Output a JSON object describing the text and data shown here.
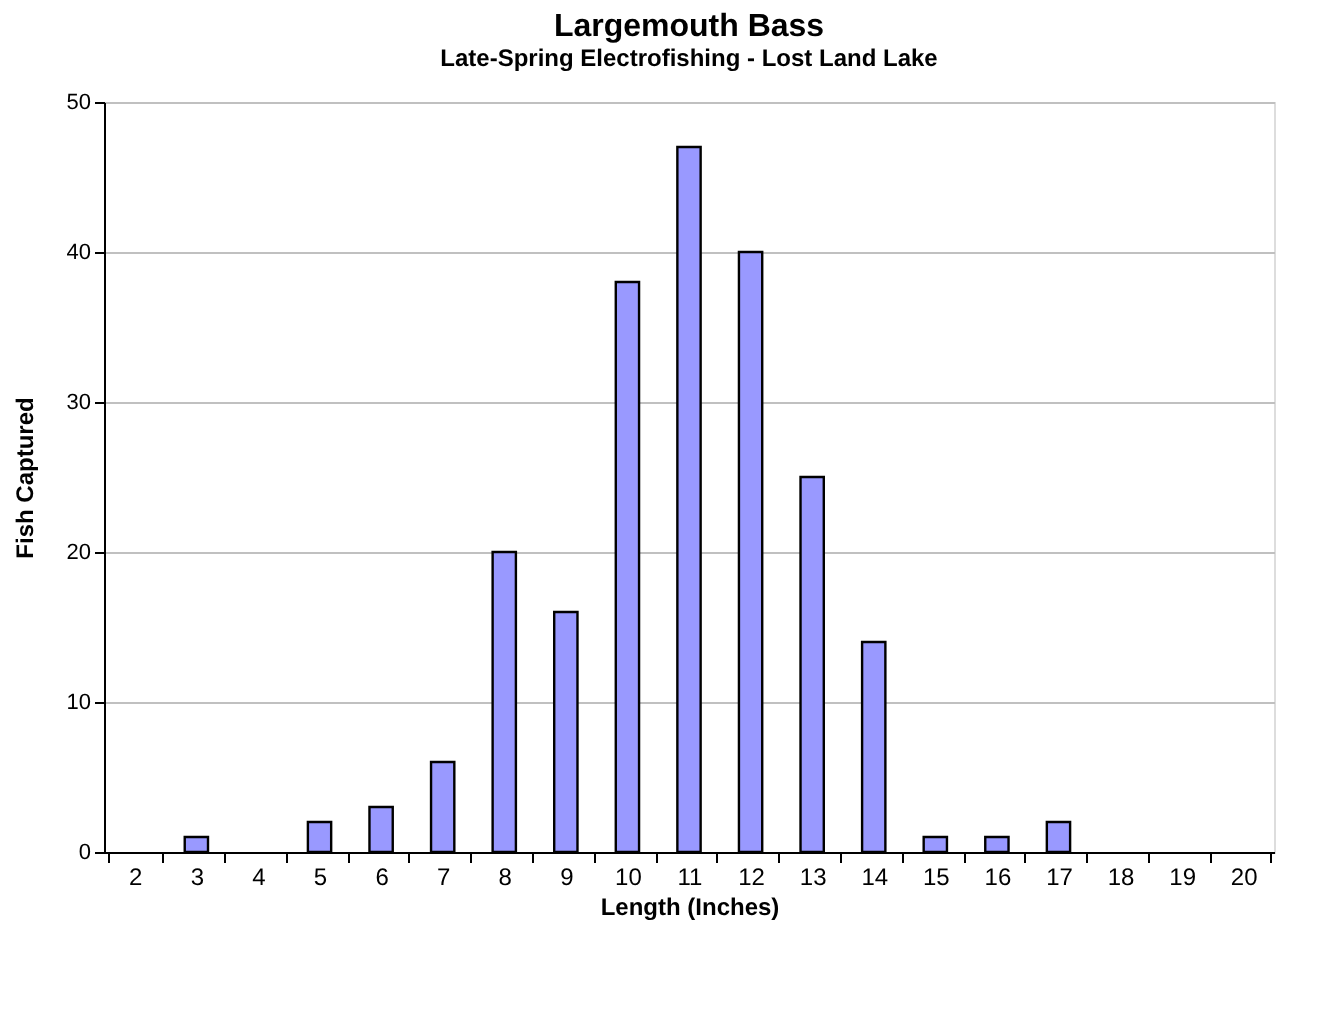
{
  "chart_data": {
    "type": "bar",
    "title": "Largemouth Bass",
    "subtitle": "Late-Spring Electrofishing -  Lost Land Lake",
    "xlabel": "Length (Inches)",
    "ylabel": "Fish Captured",
    "categories": [
      "2",
      "3",
      "4",
      "5",
      "6",
      "7",
      "8",
      "9",
      "10",
      "11",
      "12",
      "13",
      "14",
      "15",
      "16",
      "17",
      "18",
      "19",
      "20"
    ],
    "values": [
      0,
      1,
      0,
      2,
      3,
      6,
      20,
      16,
      38,
      47,
      40,
      25,
      14,
      1,
      1,
      2,
      0,
      0,
      0
    ],
    "color": "#9999ff",
    "ylim": [
      0,
      50
    ],
    "yticks": [
      0,
      10,
      20,
      30,
      40,
      50
    ],
    "grid": "y"
  }
}
